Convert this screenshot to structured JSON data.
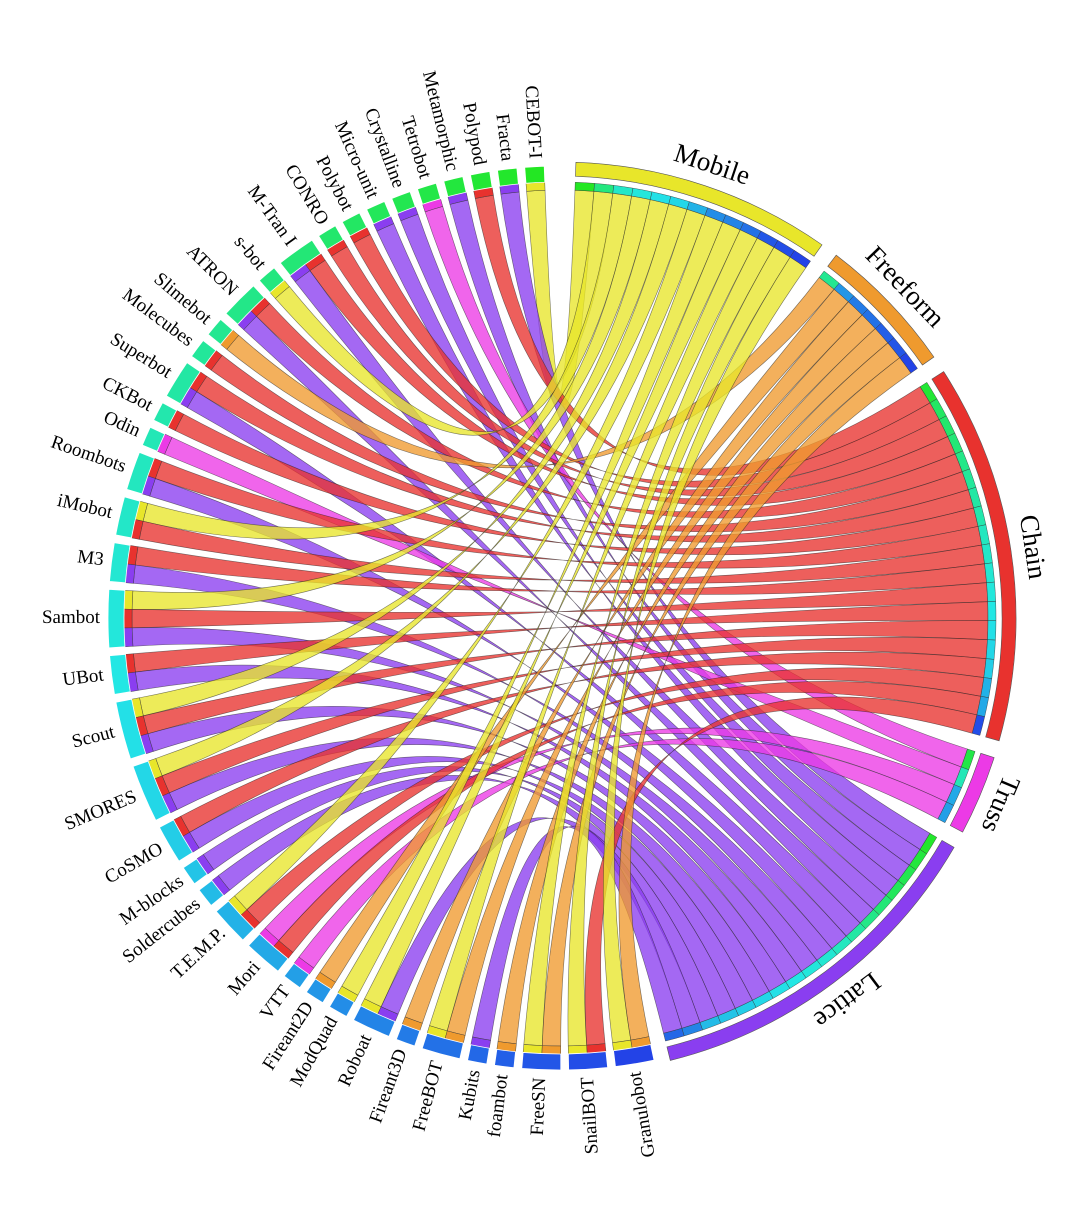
{
  "categories": [
    {
      "label": "Mobile",
      "color": "#e8e62a"
    },
    {
      "label": "Freeform",
      "color": "#ef9a2e"
    },
    {
      "label": "Chain",
      "color": "#e8322e"
    },
    {
      "label": "Truss",
      "color": "#ec3ae6"
    },
    {
      "label": "Lattice",
      "color": "#8a3ef0"
    }
  ],
  "robots": [
    {
      "label": "CEBOT-I",
      "links": [
        "Mobile"
      ]
    },
    {
      "label": "Fracta",
      "links": [
        "Lattice"
      ]
    },
    {
      "label": "Polypod",
      "links": [
        "Chain"
      ]
    },
    {
      "label": "Metamorphic",
      "links": [
        "Lattice"
      ]
    },
    {
      "label": "Tetrobot",
      "links": [
        "Truss"
      ]
    },
    {
      "label": "Crystalline",
      "links": [
        "Lattice"
      ]
    },
    {
      "label": "Micro-unit",
      "links": [
        "Lattice"
      ]
    },
    {
      "label": "Polybot",
      "links": [
        "Chain"
      ]
    },
    {
      "label": "CONRO",
      "links": [
        "Chain"
      ]
    },
    {
      "label": "M-Tran I",
      "links": [
        "Chain",
        "Lattice"
      ]
    },
    {
      "label": "s-bot",
      "links": [
        "Mobile"
      ]
    },
    {
      "label": "ATRON",
      "links": [
        "Chain",
        "Lattice"
      ]
    },
    {
      "label": "Slimebot",
      "links": [
        "Freeform"
      ]
    },
    {
      "label": "Molecubes",
      "links": [
        "Chain"
      ]
    },
    {
      "label": "Superbot",
      "links": [
        "Chain",
        "Lattice"
      ]
    },
    {
      "label": "CKBot",
      "links": [
        "Chain"
      ]
    },
    {
      "label": "Odin",
      "links": [
        "Truss"
      ]
    },
    {
      "label": "Roombots",
      "links": [
        "Chain",
        "Lattice"
      ]
    },
    {
      "label": "iMobot",
      "links": [
        "Mobile",
        "Chain"
      ]
    },
    {
      "label": "M3",
      "links": [
        "Chain",
        "Lattice"
      ]
    },
    {
      "label": "Sambot",
      "links": [
        "Mobile",
        "Chain",
        "Lattice"
      ]
    },
    {
      "label": "UBot",
      "links": [
        "Chain",
        "Lattice"
      ]
    },
    {
      "label": "Scout",
      "links": [
        "Mobile",
        "Chain",
        "Lattice"
      ]
    },
    {
      "label": "SMORES",
      "links": [
        "Mobile",
        "Chain",
        "Lattice"
      ]
    },
    {
      "label": "CoSMO",
      "links": [
        "Chain",
        "Lattice"
      ]
    },
    {
      "label": "M-blocks",
      "links": [
        "Lattice"
      ]
    },
    {
      "label": "Soldercubes",
      "links": [
        "Lattice"
      ]
    },
    {
      "label": "T.E.M.P.",
      "links": [
        "Mobile",
        "Chain"
      ]
    },
    {
      "label": "Mori",
      "links": [
        "Truss",
        "Chain"
      ]
    },
    {
      "label": "VTT",
      "links": [
        "Truss"
      ]
    },
    {
      "label": "Fireant2D",
      "links": [
        "Freeform"
      ]
    },
    {
      "label": "ModQuad",
      "links": [
        "Mobile"
      ]
    },
    {
      "label": "Roboat",
      "links": [
        "Mobile",
        "Lattice"
      ]
    },
    {
      "label": "Fireant3D",
      "links": [
        "Freeform"
      ]
    },
    {
      "label": "FreeBOT",
      "links": [
        "Mobile",
        "Freeform"
      ]
    },
    {
      "label": "Kubits",
      "links": [
        "Lattice"
      ]
    },
    {
      "label": "foambot",
      "links": [
        "Freeform"
      ]
    },
    {
      "label": "FreeSN",
      "links": [
        "Mobile",
        "Freeform"
      ]
    },
    {
      "label": "SnailBOT",
      "links": [
        "Mobile",
        "Chain"
      ]
    },
    {
      "label": "Granulobot",
      "links": [
        "Mobile",
        "Freeform"
      ]
    }
  ]
}
